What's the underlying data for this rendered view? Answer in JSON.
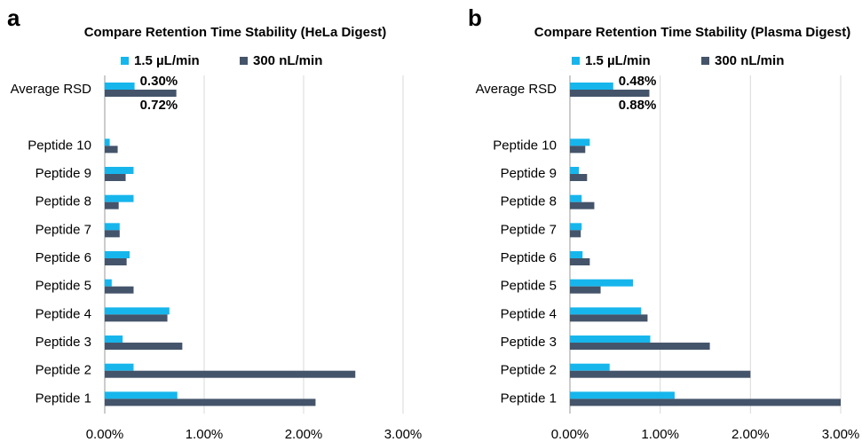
{
  "chart_data": [
    {
      "type": "barh",
      "panel_label": "a",
      "title": "Compare Retention Time Stability (HeLa Digest)",
      "categories": [
        "Average RSD",
        null,
        "Peptide 10",
        "Peptide 9",
        "Peptide 8",
        "Peptide 7",
        "Peptide 6",
        "Peptide 5",
        "Peptide 4",
        "Peptide 3",
        "Peptide 2",
        "Peptide 1"
      ],
      "series": [
        {
          "name": "1.5 µL/min",
          "color": "#16b6ec",
          "values": [
            0.3,
            null,
            0.05,
            0.29,
            0.29,
            0.15,
            0.25,
            0.07,
            0.65,
            0.18,
            0.29,
            0.73
          ],
          "value_labels": [
            "0.30%",
            null,
            null,
            null,
            null,
            null,
            null,
            null,
            null,
            null,
            null,
            null
          ]
        },
        {
          "name": "300 nL/min",
          "color": "#44546a",
          "values": [
            0.72,
            null,
            0.13,
            0.21,
            0.14,
            0.15,
            0.22,
            0.29,
            0.63,
            0.78,
            2.52,
            2.12
          ],
          "value_labels": [
            "0.72%",
            null,
            null,
            null,
            null,
            null,
            null,
            null,
            null,
            null,
            null,
            null
          ]
        }
      ],
      "xlim": [
        0,
        3
      ],
      "xticks": [
        {
          "value": 0,
          "label": "0.00%"
        },
        {
          "value": 1,
          "label": "1.00%"
        },
        {
          "value": 2,
          "label": "2.00%"
        },
        {
          "value": 3,
          "label": "3.00%"
        }
      ],
      "grid": true,
      "legend": "top"
    },
    {
      "type": "barh",
      "panel_label": "b",
      "title": "Compare Retention Time Stability (Plasma Digest)",
      "categories": [
        "Average RSD",
        null,
        "Peptide 10",
        "Peptide 9",
        "Peptide 8",
        "Peptide 7",
        "Peptide 6",
        "Peptide 5",
        "Peptide 4",
        "Peptide 3",
        "Peptide 2",
        "Peptide 1"
      ],
      "series": [
        {
          "name": "1.5 µL/min",
          "color": "#16b6ec",
          "values": [
            0.48,
            null,
            0.22,
            0.1,
            0.13,
            0.13,
            0.14,
            0.7,
            0.79,
            0.89,
            0.44,
            1.16
          ],
          "value_labels": [
            "0.48%",
            null,
            null,
            null,
            null,
            null,
            null,
            null,
            null,
            null,
            null,
            null
          ]
        },
        {
          "name": "300 nL/min",
          "color": "#44546a",
          "values": [
            0.88,
            null,
            0.17,
            0.19,
            0.27,
            0.12,
            0.22,
            0.34,
            0.86,
            1.55,
            2.0,
            3.0
          ],
          "value_labels": [
            "0.88%",
            null,
            null,
            null,
            null,
            null,
            null,
            null,
            null,
            null,
            null,
            null
          ]
        }
      ],
      "xlim": [
        0,
        3
      ],
      "xticks": [
        {
          "value": 0,
          "label": "0.00%"
        },
        {
          "value": 1,
          "label": "1.00%"
        },
        {
          "value": 2,
          "label": "2.00%"
        },
        {
          "value": 3,
          "label": "3.00%"
        }
      ],
      "grid": true,
      "legend": "top"
    }
  ]
}
